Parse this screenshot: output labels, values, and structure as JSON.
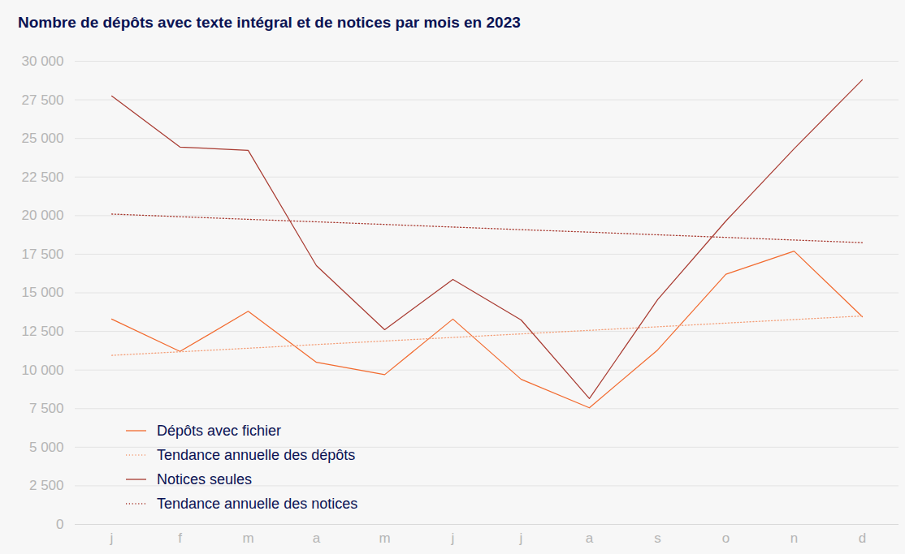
{
  "chart_data": {
    "type": "line",
    "title": "Nombre de dépôts avec texte intégral et de notices par mois en 2023",
    "categories": [
      "j",
      "f",
      "m",
      "a",
      "m",
      "j",
      "j",
      "a",
      "s",
      "o",
      "n",
      "d"
    ],
    "series": [
      {
        "name": "Dépôts avec fichier",
        "color": "#f26a2e",
        "line_style": "solid",
        "values": [
          13300,
          11200,
          13800,
          10500,
          9700,
          13300,
          9400,
          7550,
          11300,
          16200,
          17700,
          13450
        ]
      },
      {
        "name": "Tendance annuelle des dépôts",
        "color": "#f4a07a",
        "line_style": "dotted",
        "values": [
          10950,
          11180,
          11410,
          11650,
          11880,
          12110,
          12340,
          12570,
          12800,
          13040,
          13270,
          13500
        ]
      },
      {
        "name": "Notices seules",
        "color": "#a83a30",
        "line_style": "solid",
        "values": [
          27750,
          24440,
          24230,
          16760,
          12610,
          15870,
          13240,
          8150,
          14560,
          19650,
          24330,
          28800
        ]
      },
      {
        "name": "Tendance annuelle des notices",
        "color": "#a83a30",
        "line_style": "dotted",
        "values": [
          20100,
          19930,
          19760,
          19600,
          19430,
          19260,
          19090,
          18930,
          18760,
          18590,
          18420,
          18250
        ]
      }
    ],
    "ylim": [
      0,
      30000
    ],
    "yticks": [
      0,
      {
        "value": 2500,
        "label": "2 500"
      },
      {
        "value": 5000,
        "label": "5 000"
      },
      {
        "value": 7500,
        "label": "7 500"
      },
      {
        "value": 10000,
        "label": "10 000"
      },
      {
        "value": 12500,
        "label": "12 500"
      },
      {
        "value": 15000,
        "label": "15 000"
      },
      {
        "value": 17500,
        "label": "17 500"
      },
      {
        "value": 20000,
        "label": "20 000"
      },
      {
        "value": 22500,
        "label": "22 500"
      },
      {
        "value": 25000,
        "label": "25 000"
      },
      {
        "value": 27500,
        "label": "27 500"
      },
      {
        "value": 30000,
        "label": "30 000"
      }
    ],
    "grid": true,
    "legend": "lower left"
  }
}
